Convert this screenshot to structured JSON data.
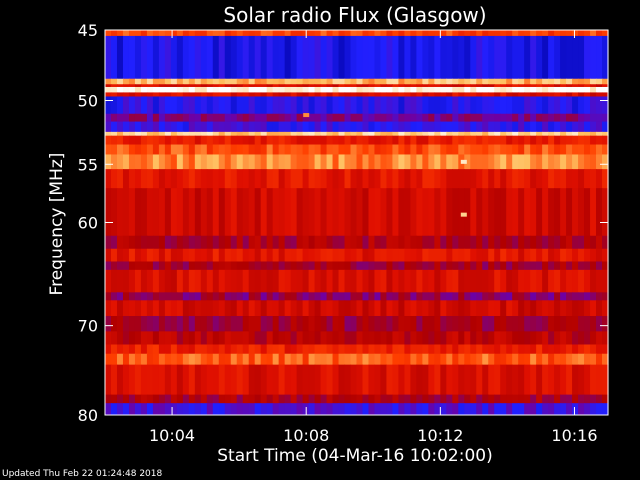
{
  "chart_data": {
    "type": "heatmap",
    "title": "Solar radio Flux (Glasgow)",
    "xlabel": "Start Time (04-Mar-16 10:02:00)",
    "ylabel": "Frequency [MHz]",
    "ylim": [
      45,
      80
    ],
    "xlim": [
      "10:02:00",
      "10:17:00"
    ],
    "y_ticks": [
      45,
      50,
      55,
      60,
      70,
      80
    ],
    "y_scale": "log",
    "x_ticks": [
      "10:04",
      "10:08",
      "10:12",
      "10:16"
    ],
    "x_tick_values_min": [
      2,
      6,
      10,
      14
    ],
    "duration_min": 15,
    "colormap": [
      "#0000a0",
      "#2020ff",
      "#7000a0",
      "#b00000",
      "#e01000",
      "#ff4000",
      "#ffc060",
      "#ffffff"
    ],
    "bands": [
      {
        "from": 45.0,
        "to": 45.4,
        "level": 0.7
      },
      {
        "from": 45.4,
        "to": 48.4,
        "level": 0.12
      },
      {
        "from": 48.4,
        "to": 48.8,
        "level": 0.85
      },
      {
        "from": 48.8,
        "to": 49.0,
        "level": 0.55
      },
      {
        "from": 49.0,
        "to": 49.4,
        "level": 1.0
      },
      {
        "from": 49.4,
        "to": 49.7,
        "level": 0.55
      },
      {
        "from": 49.7,
        "to": 51.0,
        "level": 0.15
      },
      {
        "from": 51.0,
        "to": 51.6,
        "level": 0.3
      },
      {
        "from": 51.6,
        "to": 52.4,
        "level": 0.18
      },
      {
        "from": 52.4,
        "to": 52.7,
        "level": 0.9
      },
      {
        "from": 52.7,
        "to": 53.4,
        "level": 0.6
      },
      {
        "from": 53.4,
        "to": 54.2,
        "level": 0.72
      },
      {
        "from": 54.2,
        "to": 55.4,
        "level": 0.8
      },
      {
        "from": 55.4,
        "to": 57.0,
        "level": 0.58
      },
      {
        "from": 57.0,
        "to": 61.2,
        "level": 0.52
      },
      {
        "from": 61.2,
        "to": 62.4,
        "level": 0.42
      },
      {
        "from": 62.4,
        "to": 63.6,
        "level": 0.58
      },
      {
        "from": 63.6,
        "to": 64.4,
        "level": 0.4
      },
      {
        "from": 64.4,
        "to": 66.6,
        "level": 0.55
      },
      {
        "from": 66.6,
        "to": 67.4,
        "level": 0.35
      },
      {
        "from": 67.4,
        "to": 69.0,
        "level": 0.52
      },
      {
        "from": 69.0,
        "to": 70.6,
        "level": 0.4
      },
      {
        "from": 70.6,
        "to": 72.0,
        "level": 0.46
      },
      {
        "from": 72.0,
        "to": 73.0,
        "level": 0.62
      },
      {
        "from": 73.0,
        "to": 74.2,
        "level": 0.74
      },
      {
        "from": 74.2,
        "to": 77.6,
        "level": 0.55
      },
      {
        "from": 77.6,
        "to": 78.6,
        "level": 0.42
      },
      {
        "from": 78.6,
        "to": 80.0,
        "level": 0.2
      }
    ],
    "hotspots": [
      {
        "t_min": 10.7,
        "f": 54.8,
        "level": 0.95
      },
      {
        "t_min": 10.7,
        "f": 59.3,
        "level": 0.9
      },
      {
        "t_min": 6.0,
        "f": 51.1,
        "level": 0.8
      }
    ]
  },
  "footer": {
    "updated": "Updated Thu Feb 22 01:24:48 2018"
  }
}
